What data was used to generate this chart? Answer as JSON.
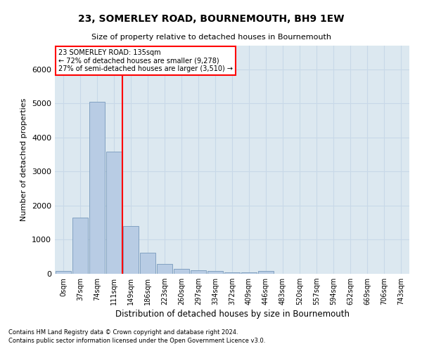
{
  "title": "23, SOMERLEY ROAD, BOURNEMOUTH, BH9 1EW",
  "subtitle": "Size of property relative to detached houses in Bournemouth",
  "xlabel": "Distribution of detached houses by size in Bournemouth",
  "ylabel": "Number of detached properties",
  "footnote1": "Contains HM Land Registry data © Crown copyright and database right 2024.",
  "footnote2": "Contains public sector information licensed under the Open Government Licence v3.0.",
  "categories": [
    "0sqm",
    "37sqm",
    "74sqm",
    "111sqm",
    "149sqm",
    "186sqm",
    "223sqm",
    "260sqm",
    "297sqm",
    "334sqm",
    "372sqm",
    "409sqm",
    "446sqm",
    "483sqm",
    "520sqm",
    "557sqm",
    "594sqm",
    "632sqm",
    "669sqm",
    "706sqm",
    "743sqm"
  ],
  "values": [
    75,
    1650,
    5060,
    3590,
    1410,
    610,
    290,
    140,
    110,
    75,
    50,
    50,
    75,
    0,
    0,
    0,
    0,
    0,
    0,
    0,
    0
  ],
  "bar_color": "#b8cce4",
  "bar_edge_color": "#7799bb",
  "vline_color": "red",
  "vline_pos": 3.5,
  "annotation_title": "23 SOMERLEY ROAD: 135sqm",
  "annotation_line1": "← 72% of detached houses are smaller (9,278)",
  "annotation_line2": "27% of semi-detached houses are larger (3,510) →",
  "annotation_box_color": "red",
  "ylim": [
    0,
    6700
  ],
  "grid_color": "#c8d8e8",
  "bg_color": "#dce8f0"
}
